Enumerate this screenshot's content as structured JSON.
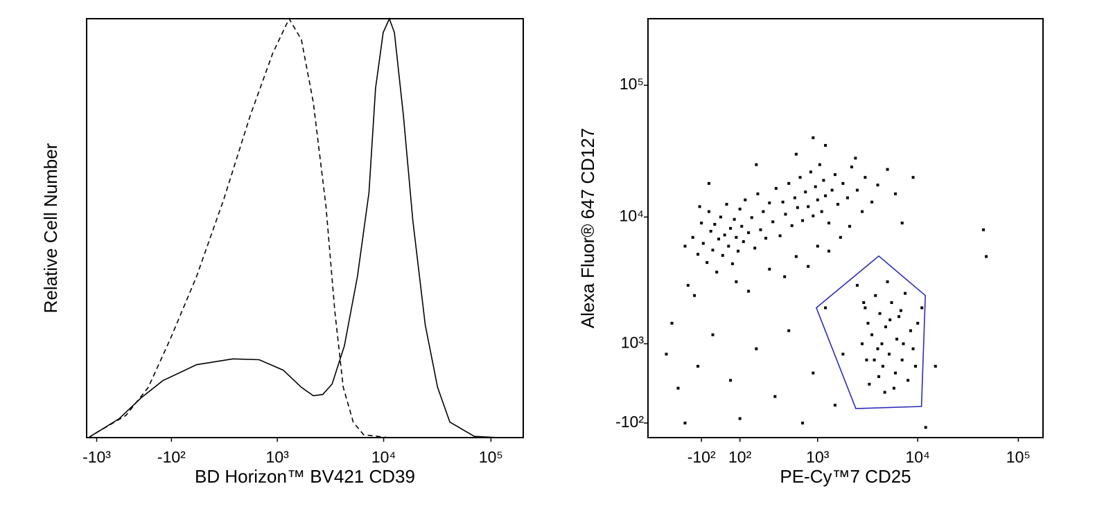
{
  "chart_data": [
    {
      "type": "line",
      "xlabel": "BD Horizon™ BV421 CD39",
      "ylabel": "Relative Cell Number",
      "xscale": "asinh",
      "yscale": "linear",
      "xlim": [
        -1250,
        200000
      ],
      "ylim": [
        0,
        100
      ],
      "xticks": [
        {
          "value": -1000,
          "label": "-10³"
        },
        {
          "value": -100,
          "label": "-10²"
        },
        {
          "value": 1000,
          "label": "10³"
        },
        {
          "value": 10000,
          "label": "10⁴"
        },
        {
          "value": 100000,
          "label": "10⁵"
        }
      ],
      "series": [
        {
          "color": "#000000",
          "line_style": "dashed",
          "x": [
            -1200,
            -1000,
            -505,
            -273,
            -107,
            61,
            256,
            530,
            900,
            1300,
            1700,
            2200,
            2900,
            3500,
            4200,
            5200,
            6500,
            11000
          ],
          "values": [
            0,
            1.2,
            5.3,
            12,
            23.6,
            38.5,
            56.8,
            76.7,
            91.7,
            100,
            95,
            80,
            55,
            30.2,
            12,
            3.7,
            0.7,
            0
          ]
        },
        {
          "color": "#000000",
          "line_style": "solid",
          "x": [
            -1200,
            -1000,
            -597,
            -338,
            -159,
            61,
            338,
            660,
            1140,
            1700,
            2200,
            2700,
            3300,
            4300,
            5700,
            7300,
            8400,
            9900,
            11300,
            12600,
            15300,
            18700,
            24400,
            31800,
            41400,
            70000,
            119000
          ],
          "values": [
            0,
            1.2,
            4.5,
            9.5,
            13.6,
            17.4,
            18.8,
            18.6,
            16.1,
            12,
            10,
            10.3,
            12.8,
            21.9,
            38.5,
            58.5,
            83.4,
            96.7,
            100,
            96.7,
            76.7,
            51.8,
            26.9,
            12,
            3.7,
            0.3,
            0
          ]
        }
      ]
    },
    {
      "type": "scatter",
      "xlabel": "PE-Cy™7 CD25",
      "ylabel": "Alexa Fluor® 647 CD127",
      "xscale": "asinh",
      "yscale": "asinh",
      "color": "#000000",
      "xlim": [
        -560,
        176000
      ],
      "ylim": [
        -270,
        320000
      ],
      "xticks": [
        {
          "value": -100,
          "label": "-10²"
        },
        {
          "value": 100,
          "label": "10²"
        },
        {
          "value": 1000,
          "label": "10³"
        },
        {
          "value": 10000,
          "label": "10⁴"
        },
        {
          "value": 100000,
          "label": "10⁵"
        }
      ],
      "yticks": [
        {
          "value": 100000,
          "label": "10⁵"
        },
        {
          "value": 10000,
          "label": "10⁴"
        },
        {
          "value": 1000,
          "label": "10³"
        },
        {
          "value": -100,
          "label": "-10²"
        }
      ],
      "x": [
        -150,
        -120,
        -100,
        -90,
        -70,
        -60,
        -50,
        -40,
        -30,
        -20,
        -10,
        0,
        10,
        20,
        30,
        40,
        50,
        60,
        70,
        80,
        90,
        100,
        110,
        120,
        130,
        150,
        170,
        190,
        210,
        230,
        250,
        270,
        300,
        330,
        360,
        400,
        430,
        460,
        500,
        540,
        580,
        620,
        660,
        700,
        750,
        800,
        850,
        900,
        950,
        1000,
        1050,
        1100,
        1150,
        1200,
        1300,
        1400,
        1500,
        1600,
        1800,
        2000,
        2200,
        2500,
        2800,
        3000,
        3500,
        4000,
        5000,
        6000,
        -180,
        -140,
        -110,
        -200,
        80,
        150,
        300,
        450,
        600,
        800,
        1000,
        1300,
        1700,
        2100,
        -60,
        200,
        600,
        1200,
        900,
        2400,
        7000,
        9000,
        2500,
        3000,
        3200,
        3500,
        3800,
        4000,
        4200,
        4500,
        4800,
        5000,
        5200,
        5500,
        6000,
        6200,
        6500,
        7000,
        7500,
        8000,
        8500,
        9000,
        3300,
        3700,
        4100,
        4400,
        4700,
        5300,
        5800,
        6800,
        7200,
        2800,
        3100,
        2900,
        9500,
        10000,
        11000,
        -300,
        -350,
        -250,
        -200,
        -120,
        -40,
        50,
        100,
        200,
        350,
        500,
        700,
        900,
        1200,
        1500,
        1800,
        12000,
        15000,
        45000,
        48000
      ],
      "values": [
        7000,
        5200,
        9000,
        6300,
        4500,
        11000,
        7800,
        5600,
        8800,
        3800,
        6800,
        10000,
        5100,
        7300,
        12500,
        6000,
        8200,
        4400,
        9600,
        7000,
        5500,
        11500,
        8500,
        6500,
        13500,
        7600,
        9900,
        5800,
        15000,
        8000,
        11000,
        6900,
        12800,
        9200,
        16500,
        7200,
        13000,
        10500,
        18000,
        8600,
        14000,
        11800,
        20000,
        9400,
        15500,
        12000,
        22000,
        10200,
        17000,
        13500,
        25000,
        11000,
        19000,
        14500,
        9000,
        16000,
        21000,
        12500,
        18000,
        14000,
        24000,
        16000,
        11000,
        20000,
        13000,
        17500,
        23000,
        15000,
        3000,
        2500,
        12000,
        6000,
        3200,
        2700,
        4000,
        3500,
        5000,
        4200,
        6000,
        5500,
        7000,
        8500,
        18000,
        25000,
        30000,
        35000,
        40000,
        28000,
        9000,
        20000,
        3000,
        2000,
        1500,
        1200,
        2500,
        900,
        1800,
        600,
        1400,
        3200,
        800,
        2200,
        500,
        1100,
        1700,
        700,
        2600,
        400,
        1300,
        900,
        350,
        700,
        450,
        1000,
        250,
        1600,
        300,
        1900,
        1000,
        1000,
        700,
        2200,
        600,
        1500,
        2000,
        1500,
        800,
        300,
        -100,
        600,
        1200,
        400,
        -50,
        900,
        200,
        1300,
        -100,
        500,
        2000,
        100,
        800,
        -150,
        600,
        8000,
        5000
      ],
      "gate": {
        "color": "#2b2bb8",
        "x": [
          970,
          4100,
          11900,
          10900,
          2420
        ],
        "values": [
          2000,
          5040,
          2500,
          86,
          62
        ]
      }
    }
  ]
}
